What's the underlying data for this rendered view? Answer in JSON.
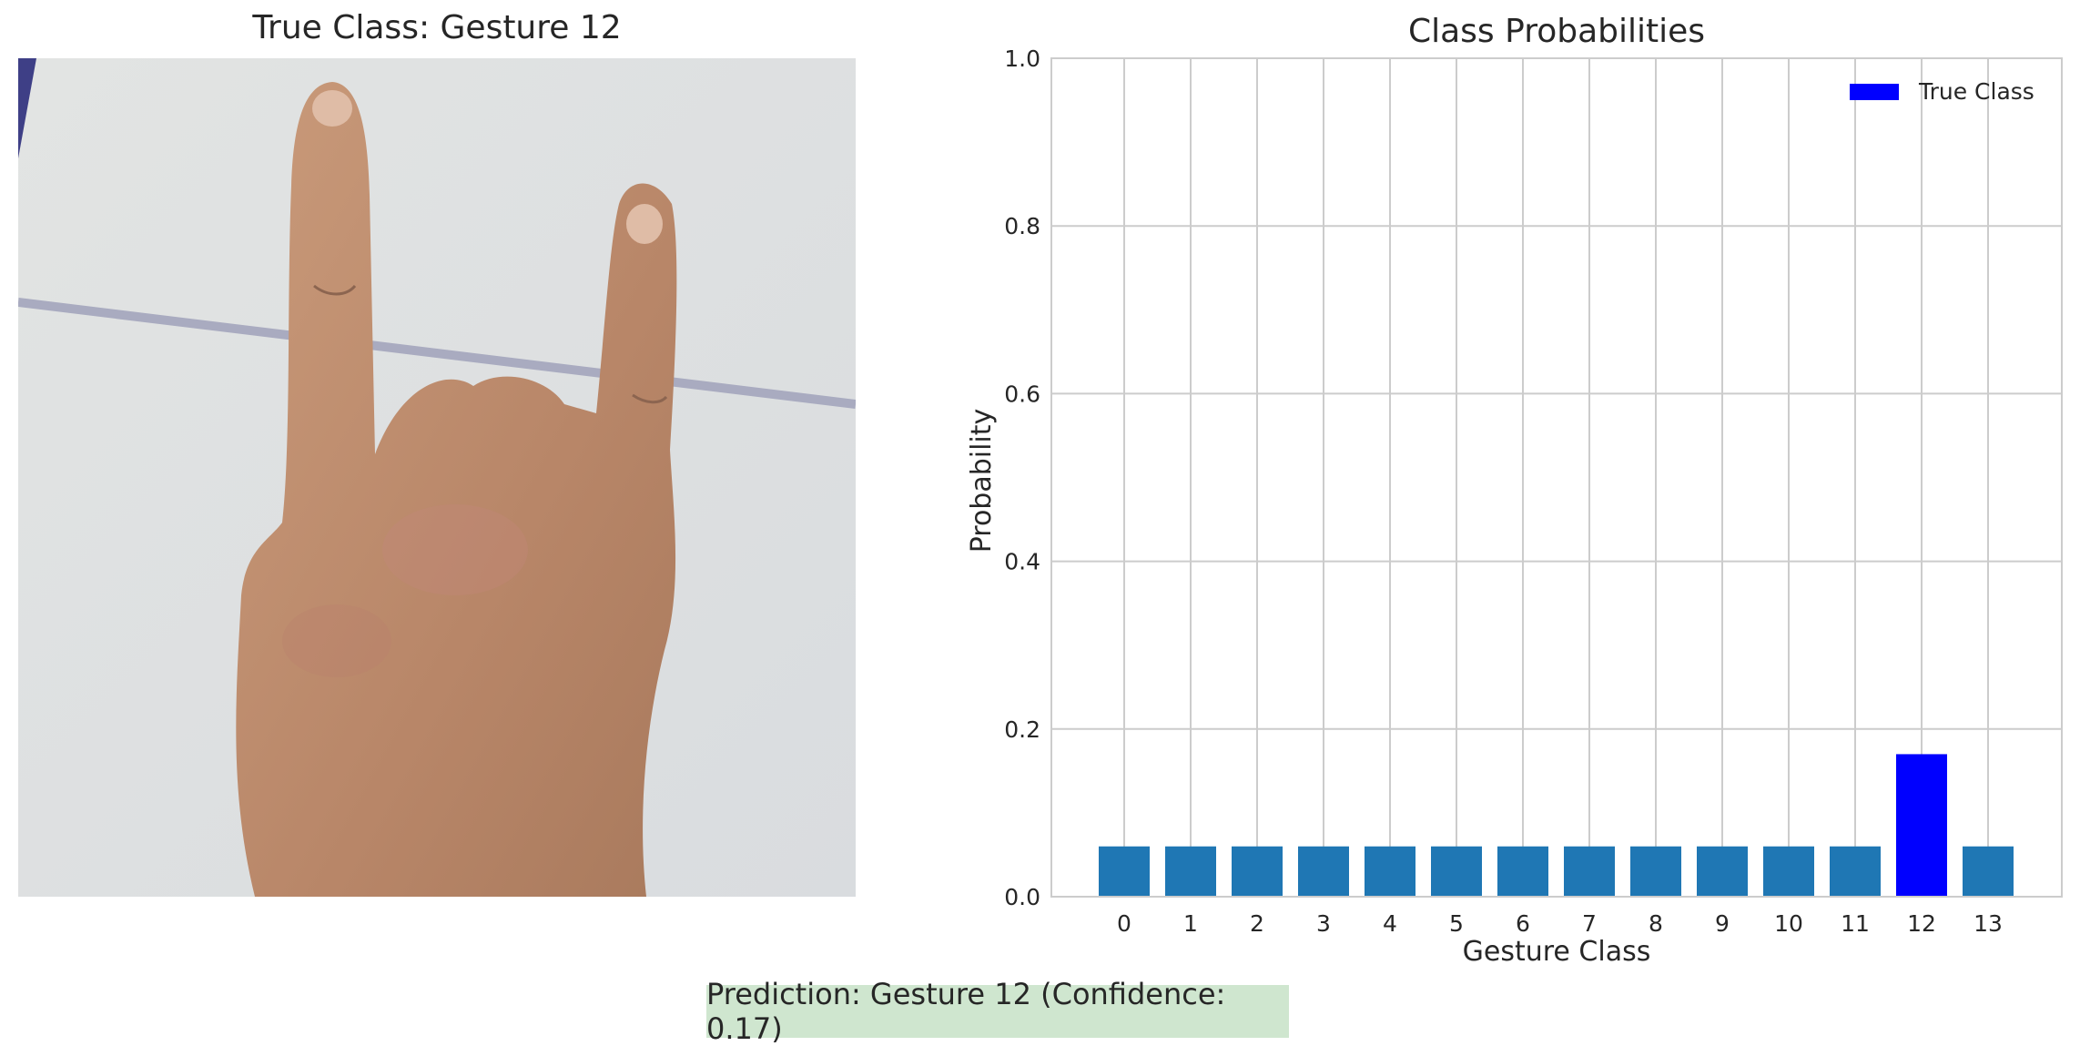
{
  "left_panel": {
    "title": "True Class: Gesture 12",
    "image_description_icon": "hand-gesture-photo"
  },
  "prediction": {
    "text": "Prediction: Gesture 12 (Confidence: 0.17)",
    "box_color": "#cfe6cf"
  },
  "chart_data": {
    "type": "bar",
    "title": "Class Probabilities",
    "xlabel": "Gesture Class",
    "ylabel": "Probability",
    "categories": [
      "0",
      "1",
      "2",
      "3",
      "4",
      "5",
      "6",
      "7",
      "8",
      "9",
      "10",
      "11",
      "12",
      "13"
    ],
    "values": [
      0.06,
      0.06,
      0.06,
      0.06,
      0.06,
      0.06,
      0.06,
      0.06,
      0.06,
      0.06,
      0.06,
      0.06,
      0.17,
      0.06
    ],
    "ylim": [
      0,
      1.0
    ],
    "yticks": [
      "0.0",
      "0.2",
      "0.4",
      "0.6",
      "0.8",
      "1.0"
    ],
    "grid": true,
    "highlight_index": 12,
    "colors": {
      "default": "#1f77b4",
      "highlight": "#0000ff"
    },
    "legend": {
      "placement": "top-right",
      "entries": [
        {
          "label": "True Class",
          "color": "#0000ff"
        }
      ]
    }
  }
}
